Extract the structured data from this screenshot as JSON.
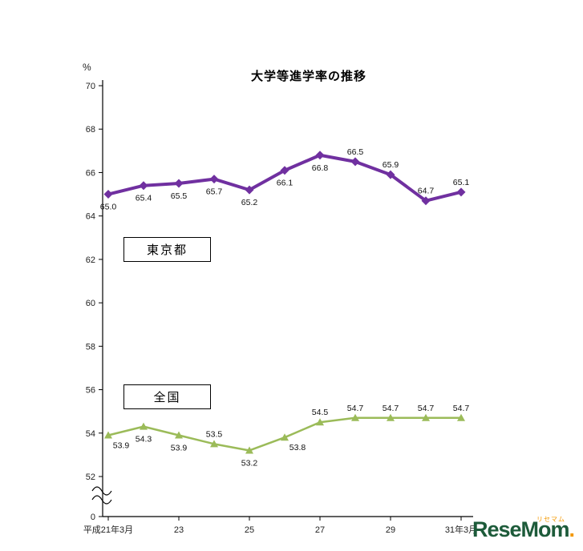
{
  "title": "大学等進学率の推移",
  "y_axis_unit": "%",
  "legend": {
    "tokyo": "東京都",
    "national": "全国"
  },
  "logo": {
    "text": "ReseMom",
    "dot": ".",
    "kana": "リセマム"
  },
  "chart_data": {
    "type": "line",
    "title": "大学等進学率の推移",
    "ylabel": "%",
    "ylim": [
      52,
      70
    ],
    "grid": false,
    "y_axis_break": true,
    "y_origin_label": "0",
    "y_ticks": [
      52,
      54,
      56,
      58,
      60,
      62,
      64,
      66,
      68,
      70
    ],
    "x_tick_labels": [
      {
        "index": 0,
        "label": "平成21年3月"
      },
      {
        "index": 2,
        "label": "23"
      },
      {
        "index": 4,
        "label": "25"
      },
      {
        "index": 6,
        "label": "27"
      },
      {
        "index": 8,
        "label": "29"
      },
      {
        "index": 10,
        "label": "31年3月"
      }
    ],
    "series": [
      {
        "key": "tokyo",
        "name": "東京都",
        "color": "#7030A0",
        "marker": "diamond",
        "line_width": 4,
        "values": [
          65.0,
          65.4,
          65.5,
          65.7,
          65.2,
          66.1,
          66.8,
          66.5,
          65.9,
          64.7,
          65.1
        ],
        "label_positions": [
          "below",
          "below",
          "below",
          "below",
          "below",
          "below",
          "below",
          "above",
          "above",
          "above",
          "above"
        ]
      },
      {
        "key": "national",
        "name": "全国",
        "color": "#9BBB59",
        "marker": "triangle",
        "line_width": 2.5,
        "values": [
          53.9,
          54.3,
          53.9,
          53.5,
          53.2,
          53.8,
          54.5,
          54.7,
          54.7,
          54.7,
          54.7
        ],
        "label_positions": [
          "below-right",
          "below",
          "below",
          "above",
          "below",
          "below-right",
          "above",
          "above",
          "above",
          "above",
          "above"
        ]
      }
    ]
  }
}
